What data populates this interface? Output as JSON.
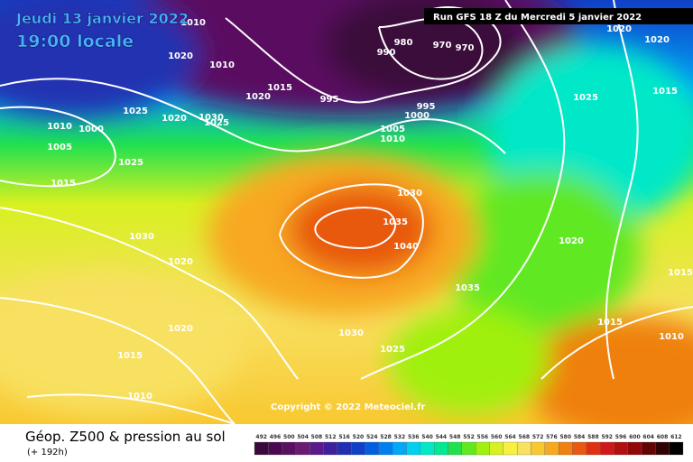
{
  "header": {
    "date": "Jeudi 13 janvier 2022",
    "time": "19:00 locale",
    "run": "Run GFS 18 Z du Mercredi 5 janvier 2022"
  },
  "footer": {
    "title": "Géop. Z500 & pression au sol",
    "lead": "(+ 192h)",
    "copyright": "Copyright © 2022 Meteociel.fr"
  },
  "isobars": [
    "1010",
    "1020",
    "1010",
    "1015",
    "1020",
    "995",
    "990",
    "980",
    "970",
    "970",
    "995",
    "1000",
    "1005",
    "1010",
    "1025",
    "1020",
    "1030",
    "1025",
    "1010",
    "1000",
    "1005",
    "1025",
    "1015",
    "1030",
    "1020",
    "1020",
    "1015",
    "1010",
    "1030",
    "1035",
    "1040",
    "1035",
    "1030",
    "1025",
    "1020",
    "1025",
    "1015",
    "1020",
    "1020",
    "1015",
    "1010",
    "1015"
  ],
  "legend": [
    {
      "value": 492,
      "color": "#3a0a3a"
    },
    {
      "value": 496,
      "color": "#4a0a50"
    },
    {
      "value": 500,
      "color": "#5a1060"
    },
    {
      "value": 504,
      "color": "#6a1a70"
    },
    {
      "value": 508,
      "color": "#5a1a8a"
    },
    {
      "value": 512,
      "color": "#40209a"
    },
    {
      "value": 516,
      "color": "#2030b0"
    },
    {
      "value": 520,
      "color": "#1040c8"
    },
    {
      "value": 524,
      "color": "#0060e0"
    },
    {
      "value": 528,
      "color": "#0080f0"
    },
    {
      "value": 532,
      "color": "#00a8f8"
    },
    {
      "value": 536,
      "color": "#00d0f0"
    },
    {
      "value": 540,
      "color": "#00e8c8"
    },
    {
      "value": 544,
      "color": "#00e890"
    },
    {
      "value": 548,
      "color": "#20e050"
    },
    {
      "value": 552,
      "color": "#60e820"
    },
    {
      "value": 556,
      "color": "#a0f010"
    },
    {
      "value": 560,
      "color": "#d8f020"
    },
    {
      "value": 564,
      "color": "#f8f040"
    },
    {
      "value": 568,
      "color": "#f8e060"
    },
    {
      "value": 572,
      "color": "#f8c830"
    },
    {
      "value": 576,
      "color": "#f8a820"
    },
    {
      "value": 580,
      "color": "#f08010"
    },
    {
      "value": 584,
      "color": "#e85810"
    },
    {
      "value": 588,
      "color": "#e03010"
    },
    {
      "value": 592,
      "color": "#d01818"
    },
    {
      "value": 596,
      "color": "#b01010"
    },
    {
      "value": 600,
      "color": "#900808"
    },
    {
      "value": 604,
      "color": "#600404"
    },
    {
      "value": 608,
      "color": "#300202"
    },
    {
      "value": 612,
      "color": "#000000"
    }
  ]
}
